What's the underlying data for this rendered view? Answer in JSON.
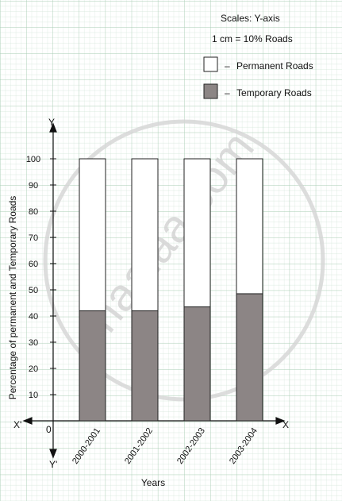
{
  "chart_data": {
    "type": "bar",
    "stacked": true,
    "categories": [
      "2000-2001",
      "2001-2002",
      "2002-2003",
      "2003-2004"
    ],
    "series": [
      {
        "name": "Temporary Roads",
        "values": [
          42,
          42,
          43.5,
          48.5
        ],
        "color": "#8c8585"
      },
      {
        "name": "Permanent Roads",
        "values": [
          58,
          58,
          56.5,
          51.5
        ],
        "color": "#ffffff"
      }
    ],
    "ylim": [
      0,
      100
    ],
    "yticks": [
      10,
      20,
      30,
      40,
      50,
      60,
      70,
      80,
      90,
      100
    ],
    "xlabel": "Years",
    "ylabel": "Percentage of permanent and Temporary Roads",
    "grid": true,
    "legend_position": "top-right"
  },
  "scale": {
    "title": "Scales: Y-axis",
    "text": "1 cm = 10% Roads"
  },
  "legend": {
    "dash": "–",
    "items": [
      {
        "label": "Permanent Roads",
        "color": "#ffffff"
      },
      {
        "label": "Temporary Roads",
        "color": "#8c8585"
      }
    ]
  },
  "axes": {
    "y_label": "Y",
    "y_neg_label": "Y'",
    "x_label": "X",
    "x_neg_label": "X'",
    "origin": "0"
  },
  "watermark": "shaalaa.com"
}
